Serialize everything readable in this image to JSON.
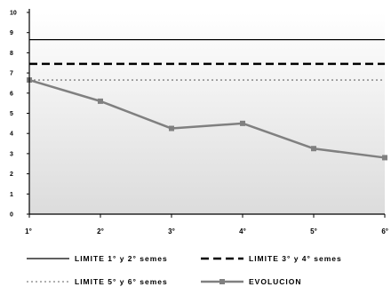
{
  "chart_data": {
    "type": "line",
    "categories": [
      "1°",
      "2°",
      "3°",
      "4°",
      "5°",
      "6°"
    ],
    "ylim": [
      0,
      10
    ],
    "yticks": [
      "0",
      "1",
      "2",
      "3",
      "4",
      "5",
      "6",
      "7",
      "8",
      "9",
      "10"
    ],
    "series": [
      {
        "name": "EVOLUCION",
        "values": [
          6.65,
          5.6,
          4.25,
          4.5,
          3.25,
          2.8
        ],
        "color": "#808080",
        "marker": "square"
      }
    ],
    "reference_lines": [
      {
        "name": "LIMITE 1° y 2° semes",
        "value": 8.65,
        "color": "#000000",
        "style": "solid"
      },
      {
        "name": "LIMITE 3° y 4° semes",
        "value": 7.45,
        "color": "#000000",
        "style": "dashed"
      },
      {
        "name": "LIMITE 5° y 6° semes",
        "value": 6.65,
        "color": "#808080",
        "style": "dotted"
      }
    ],
    "legend": {
      "position": "bottom",
      "items": [
        {
          "label": "LIMITE 1° y 2° semes",
          "style": "solid",
          "color": "#000000"
        },
        {
          "label": "LIMITE 3° y 4° semes",
          "style": "dashed",
          "color": "#000000"
        },
        {
          "label": "LIMITE 5° y 6° semes",
          "style": "dotted",
          "color": "#808080"
        },
        {
          "label": "EVOLUCION",
          "style": "line-marker",
          "color": "#808080"
        }
      ]
    },
    "plot_background": "gradient-white-to-light-gray",
    "grid": false
  }
}
